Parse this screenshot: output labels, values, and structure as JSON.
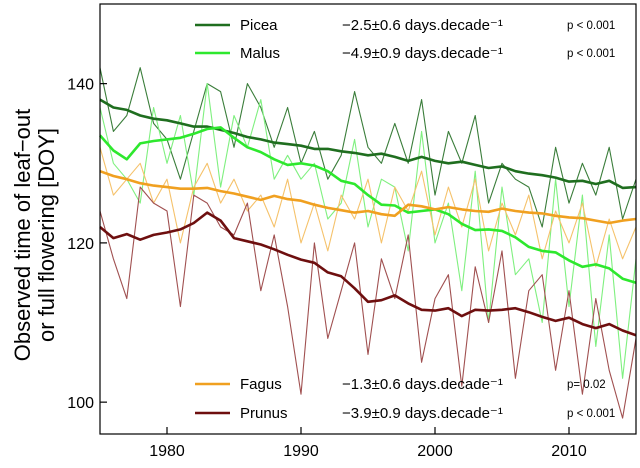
{
  "chart_data": {
    "type": "line",
    "title": "",
    "xlabel": "",
    "ylabel": [
      "Observed time of leaf−out",
      "or full flowering [DOY]"
    ],
    "xlim": [
      1975,
      2015
    ],
    "ylim": [
      96,
      150
    ],
    "xticks": [
      1980,
      1990,
      2000,
      2010
    ],
    "yticks": [
      100,
      120,
      140
    ],
    "x": [
      1975,
      1976,
      1977,
      1978,
      1979,
      1980,
      1981,
      1982,
      1983,
      1984,
      1985,
      1986,
      1987,
      1988,
      1989,
      1990,
      1991,
      1992,
      1993,
      1994,
      1995,
      1996,
      1997,
      1998,
      1999,
      2000,
      2001,
      2002,
      2003,
      2004,
      2005,
      2006,
      2007,
      2008,
      2009,
      2010,
      2011,
      2012,
      2013,
      2014,
      2015
    ],
    "series": [
      {
        "name": "Picea",
        "trend": "−2.5±0.6 days.decade⁻¹",
        "p": "p < 0.001",
        "color": "#1f6e1f",
        "raw_color": "#3a7d3a",
        "raw": [
          142,
          134,
          136,
          142,
          135,
          133,
          128,
          134,
          140,
          139,
          132,
          140,
          137,
          132,
          137,
          130,
          134,
          128,
          131,
          139,
          132,
          130,
          135,
          130,
          138,
          126,
          134,
          130,
          136,
          125,
          130,
          128,
          127,
          122,
          132,
          125,
          130,
          126,
          132,
          123,
          128
        ],
        "smooth": [
          138,
          137,
          136.7,
          136,
          135.6,
          135.4,
          135,
          134.6,
          134.6,
          134.2,
          133.8,
          133.3,
          133,
          132.6,
          132.4,
          132.2,
          131.8,
          131.8,
          131.5,
          131.3,
          131,
          131.2,
          130.8,
          130.3,
          130.8,
          130.3,
          130,
          130.2,
          129.8,
          129.4,
          129.6,
          129,
          128.7,
          128.5,
          128.2,
          127.7,
          127.8,
          127.4,
          127.8,
          126.9,
          127
        ]
      },
      {
        "name": "Malus",
        "trend": "−4.9±0.9 days.decade⁻¹",
        "p": "p < 0.001",
        "color": "#2ee82e",
        "raw_color": "#7ff07f",
        "raw": [
          137,
          130,
          128,
          125,
          137,
          130,
          136,
          126,
          140,
          127,
          136,
          132,
          138,
          128,
          131,
          128,
          130,
          123,
          125,
          133,
          122,
          128,
          127,
          119,
          134,
          120,
          125,
          114,
          129,
          110,
          127,
          116,
          118,
          110,
          128,
          112,
          126,
          107,
          121,
          103,
          118
        ],
        "smooth": [
          133.5,
          131.6,
          130.5,
          132.5,
          132.8,
          133,
          133.2,
          133.7,
          134.3,
          134.5,
          133.2,
          132,
          131.4,
          130.5,
          129.8,
          130,
          129.7,
          129,
          127.8,
          127.4,
          126,
          124.8,
          124.7,
          123.8,
          124,
          124.2,
          123.6,
          122.4,
          121.6,
          121.7,
          121.5,
          120.7,
          119.5,
          119,
          118.8,
          117.8,
          117,
          117.3,
          116.8,
          115.5,
          115
        ]
      },
      {
        "name": "Fagus",
        "trend": "−1.3±0.6 days.decade⁻¹",
        "p": "p= 0.02",
        "color": "#f0a020",
        "raw_color": "#f5c26b",
        "raw": [
          132,
          126,
          128,
          130,
          125,
          128,
          120,
          127,
          130,
          125,
          128,
          124,
          126,
          122,
          128,
          120,
          125,
          119,
          126,
          123,
          128,
          120,
          127,
          124,
          129,
          121,
          127,
          122,
          128,
          119,
          125,
          121,
          126,
          118,
          124,
          120,
          125,
          117,
          123,
          118,
          122
        ],
        "smooth": [
          129,
          128.4,
          128,
          127.5,
          127.2,
          127,
          126.8,
          126.8,
          126.9,
          126.5,
          126.2,
          125.8,
          125.4,
          125.9,
          125.5,
          125.3,
          124.8,
          124.4,
          124.1,
          123.8,
          124,
          123.6,
          123.4,
          124.8,
          124.6,
          124.2,
          124.5,
          124.2,
          124,
          123.9,
          124.3,
          124,
          123.8,
          123.7,
          123.4,
          123.2,
          123.1,
          122.8,
          122.5,
          122.8,
          123
        ]
      },
      {
        "name": "Prunus",
        "trend": "−3.9±0.9 days.decade⁻¹",
        "p": "p < 0.001",
        "color": "#6e0f0f",
        "raw_color": "#a05050",
        "raw": [
          124,
          118,
          113,
          127,
          125,
          124,
          112,
          126,
          125,
          122,
          121,
          125,
          114,
          121,
          112,
          101,
          120,
          108,
          114,
          120,
          106,
          118,
          113,
          121,
          105,
          113,
          116,
          102,
          117,
          110,
          119,
          103,
          114,
          116,
          104,
          114,
          101,
          113,
          104,
          98,
          108
        ],
        "smooth": [
          122,
          120.6,
          121.1,
          120.4,
          121,
          121.3,
          121.7,
          122.5,
          123.8,
          122.8,
          120.6,
          120.2,
          119.8,
          119.2,
          118.5,
          117.9,
          117.5,
          116.3,
          115.8,
          114.3,
          112.6,
          112.8,
          113.4,
          112.4,
          111.6,
          111.5,
          111.8,
          110.8,
          111.6,
          111.5,
          111.6,
          111.8,
          111.3,
          110.7,
          110.2,
          110.6,
          109.8,
          109.3,
          109.8,
          109,
          108.4
        ]
      }
    ],
    "legend": {
      "top_entries": [
        "Picea",
        "Malus"
      ],
      "bottom_entries": [
        "Fagus",
        "Prunus"
      ]
    }
  }
}
